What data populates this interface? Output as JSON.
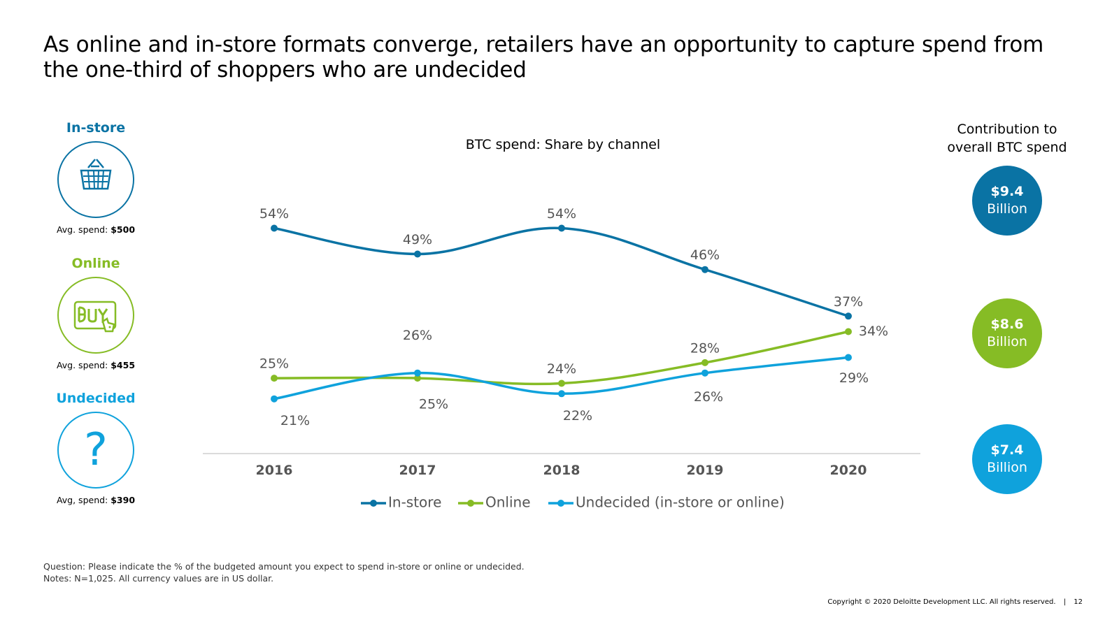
{
  "title": "As online and in-store formats converge, retailers have an opportunity to capture spend from the one-third of shoppers who are undecided",
  "categories": [
    {
      "label": "In-store",
      "spend_prefix": "Avg. spend: ",
      "spend_value": "$500",
      "color": "#0a73a4",
      "icon": "shopping-basket-icon"
    },
    {
      "label": "Online",
      "spend_prefix": "Avg. spend: ",
      "spend_value": "$455",
      "color": "#86bc25",
      "icon": "buy-screen-icon"
    },
    {
      "label": "Undecided",
      "spend_prefix": "Avg, spend: ",
      "spend_value": "$390",
      "color": "#0fa2dc",
      "icon": "question-mark-icon",
      "glyph": "?"
    }
  ],
  "contribution": {
    "title_line1": "Contribution to",
    "title_line2": "overall BTC spend",
    "items": [
      {
        "amount": "$9.4",
        "unit": "Billion",
        "color": "#0a73a4"
      },
      {
        "amount": "$8.6",
        "unit": "Billion",
        "color": "#86bc25"
      },
      {
        "amount": "$7.4",
        "unit": "Billion",
        "color": "#0fa2dc"
      }
    ]
  },
  "chart_data": {
    "type": "line",
    "title": "BTC spend: Share by channel",
    "x": [
      "2016",
      "2017",
      "2018",
      "2019",
      "2020"
    ],
    "ylim": [
      0,
      60
    ],
    "grid": false,
    "legend_position": "bottom",
    "series": [
      {
        "name": "In-store",
        "values": [
          54,
          49,
          54,
          46,
          37
        ],
        "color": "#0a73a4",
        "labels": [
          "54%",
          "49%",
          "54%",
          "46%",
          "37%"
        ]
      },
      {
        "name": "Online",
        "values": [
          25,
          25,
          24,
          28,
          34
        ],
        "color": "#86bc25",
        "labels": [
          "25%",
          "25%",
          "24%",
          "28%",
          "34%"
        ]
      },
      {
        "name": "Undecided (in-store or online)",
        "values": [
          21,
          26,
          22,
          26,
          29
        ],
        "color": "#0fa2dc",
        "labels": [
          "21%",
          "26%",
          "22%",
          "26%",
          "29%"
        ]
      }
    ]
  },
  "notes": {
    "question": "Question: Please indicate the % of the budgeted amount you expect to spend in-store or online or undecided.",
    "notes": "Notes: N=1,025. All currency values are in US dollar."
  },
  "footer": {
    "copyright": "Copyright © 2020 Deloitte Development LLC. All rights reserved.",
    "separator": "|",
    "page_number": "12"
  }
}
